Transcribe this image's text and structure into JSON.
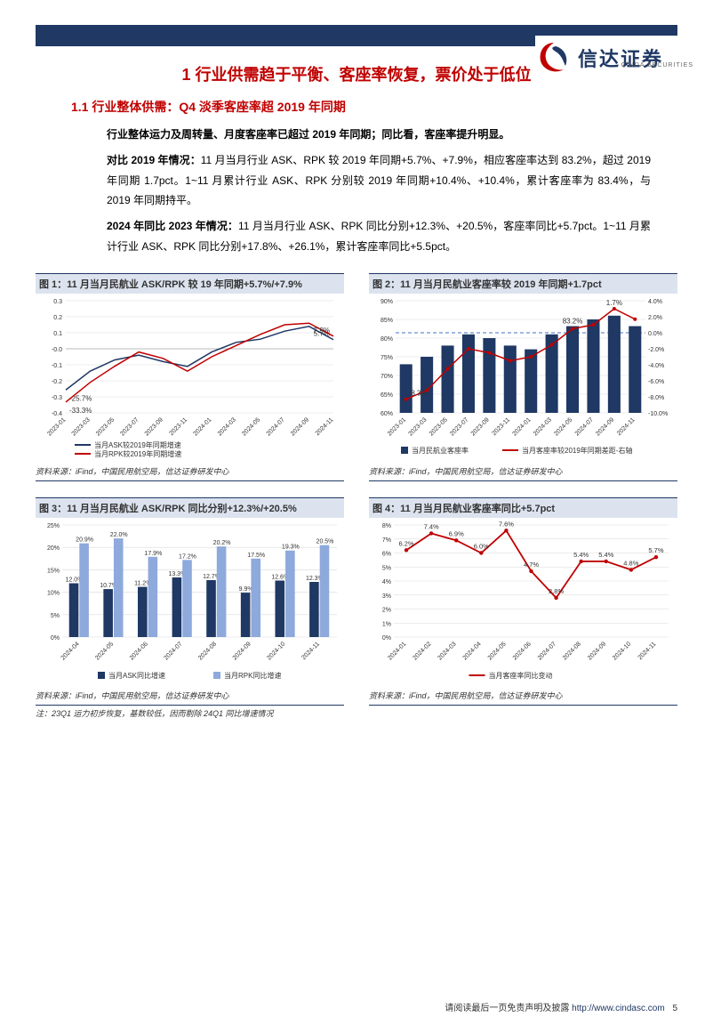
{
  "logo": {
    "name": "信达证券",
    "sub": "CINDA SECURITIES"
  },
  "section_title": "1 行业供需趋于平衡、客座率恢复，票价处于低位",
  "subsection_title": "1.1 行业整体供需：Q4 淡季客座率超 2019 年同期",
  "para_lead": "行业整体运力及周转量、月度客座率已超过 2019 年同期；同比看，客座率提升明显。",
  "para1_label": "对比 2019 年情况：",
  "para1_body": "11 月当月行业 ASK、RPK 较 2019 年同期+5.7%、+7.9%，相应客座率达到 83.2%，超过 2019 年同期 1.7pct。1~11 月累计行业 ASK、RPK 分别较 2019 年同期+10.4%、+10.4%，累计客座率为 83.4%，与 2019 年同期持平。",
  "para2_label": "2024 年同比 2023 年情况：",
  "para2_body": "11 月当月行业 ASK、RPK 同比分别+12.3%、+20.5%，客座率同比+5.7pct。1~11 月累计行业 ASK、RPK 同比分别+17.8%、+26.1%，累计客座率同比+5.5pct。",
  "source_text": "资料来源：iFind，中国民用航空局，信达证券研发中心",
  "chart3_note": "注：23Q1 运力初步恢复，基数较低，因而剔除 24Q1 同比增速情况",
  "footer": {
    "disclaimer": "请阅读最后一页免责声明及披露",
    "url": "http://www.cindasc.com",
    "page": "5"
  },
  "chart1": {
    "title": "图 1：11 月当月民航业 ASK/RPK 较 19 年同期+5.7%/+7.9%",
    "type": "line",
    "x_labels": [
      "2023-01",
      "2023-03",
      "2023-05",
      "2023-07",
      "2023-09",
      "2023-11",
      "2024-01",
      "2024-03",
      "2024-05",
      "2024-07",
      "2024-09",
      "2024-11"
    ],
    "ylim": [
      -0.4,
      0.3
    ],
    "ytick_step": 0.1,
    "series": [
      {
        "name": "当月ASK较2019年同期增速",
        "color": "#1f3864",
        "values": [
          -0.257,
          -0.14,
          -0.07,
          -0.04,
          -0.08,
          -0.11,
          -0.02,
          0.04,
          0.06,
          0.11,
          0.14,
          0.057
        ],
        "first_label": "-25.7%",
        "last_label": "5.7%"
      },
      {
        "name": "当月RPK较2019年同期增速",
        "color": "#c00000",
        "values": [
          -0.333,
          -0.21,
          -0.11,
          -0.02,
          -0.06,
          -0.14,
          -0.05,
          0.02,
          0.09,
          0.15,
          0.16,
          0.079
        ],
        "first_label": "-33.3%",
        "last_label": "7.9%"
      }
    ],
    "grid_color": "#d9d9d9",
    "background_color": "#ffffff",
    "zero_line": "#bbb",
    "label_fontsize": 7,
    "tick_fontsize": 7
  },
  "chart2": {
    "title": "图 2：11 月当月民航业客座率较 2019 年同期+1.7pct",
    "type": "bar+line",
    "x_labels": [
      "2023-01",
      "2023-03",
      "2023-05",
      "2023-07",
      "2023-09",
      "2023-11",
      "2024-01",
      "2024-03",
      "2024-05",
      "2024-07",
      "2024-09",
      "2024-11"
    ],
    "ylim_left": [
      60,
      90
    ],
    "ytick_left": 5,
    "ylim_right": [
      -10,
      4
    ],
    "ytick_right": 2,
    "bars": {
      "name": "当月民航业客座率",
      "color": "#1f3864",
      "values": [
        73,
        75,
        78,
        81,
        80,
        78,
        77,
        81,
        83.2,
        85,
        86,
        83.2
      ],
      "call_left": "-8.3%",
      "call_label": "83.2%",
      "call_right": "1.7%"
    },
    "line": {
      "name": "当月客座率较2019年同期差距-右轴",
      "color": "#c00000",
      "values": [
        -8.3,
        -7.2,
        -4.5,
        -2.0,
        -2.5,
        -3.5,
        -3.0,
        -1.5,
        0.5,
        1.0,
        3.0,
        1.7
      ]
    },
    "grid_color": "#d9d9d9",
    "zero_dash": "#4472c4",
    "label_fontsize": 7,
    "tick_fontsize": 7
  },
  "chart3": {
    "title": "图 3：11 月当月民航业 ASK/RPK 同比分别+12.3%/+20.5%",
    "type": "grouped-bar",
    "x_labels": [
      "2024-04",
      "2024-05",
      "2024-06",
      "2024-07",
      "2024-08",
      "2024-09",
      "2024-10",
      "2024-11"
    ],
    "ylim": [
      0,
      25
    ],
    "ytick": 5,
    "series": [
      {
        "name": "当月ASK同比增速",
        "color": "#1f3864",
        "values": [
          12.0,
          10.7,
          11.2,
          13.3,
          12.7,
          9.9,
          12.6,
          12.3
        ]
      },
      {
        "name": "当月RPK同比增速",
        "color": "#8ea9db",
        "values": [
          20.9,
          22.0,
          17.9,
          17.2,
          20.2,
          17.5,
          19.3,
          20.5
        ]
      }
    ],
    "value_labels": [
      [
        "12.0%",
        "10.7%",
        "11.2%",
        "13.3%",
        "12.7%",
        "9.9%",
        "12.6%",
        "12.3%"
      ],
      [
        "20.9%",
        "22.0%",
        "17.9%",
        "17.2%",
        "20.2%",
        "17.5%",
        "19.3%",
        "20.5%"
      ]
    ],
    "grid_color": "#d9d9d9",
    "label_fontsize": 7,
    "tick_fontsize": 7
  },
  "chart4": {
    "title": "图 4：11 月当月民航业客座率同比+5.7pct",
    "type": "line",
    "x_labels": [
      "2024-01",
      "2024-02",
      "2024-03",
      "2024-04",
      "2024-05",
      "2024-06",
      "2024-07",
      "2024-08",
      "2024-09",
      "2024-10",
      "2024-11"
    ],
    "ylim": [
      0,
      8
    ],
    "ytick": 1,
    "series": [
      {
        "name": "当月客座率同比变动",
        "color": "#c00000",
        "values": [
          6.2,
          7.4,
          6.9,
          6.0,
          7.6,
          4.7,
          2.8,
          5.4,
          5.4,
          4.8,
          5.7
        ],
        "value_labels": [
          "6.2%",
          "7.4%",
          "6.9%",
          "6.0%",
          "7.6%",
          "4.7%",
          "2.8%",
          "5.4%",
          "5.4%",
          "4.8%",
          "5.7%"
        ]
      }
    ],
    "grid_color": "#d9d9d9",
    "label_fontsize": 7,
    "tick_fontsize": 7
  }
}
